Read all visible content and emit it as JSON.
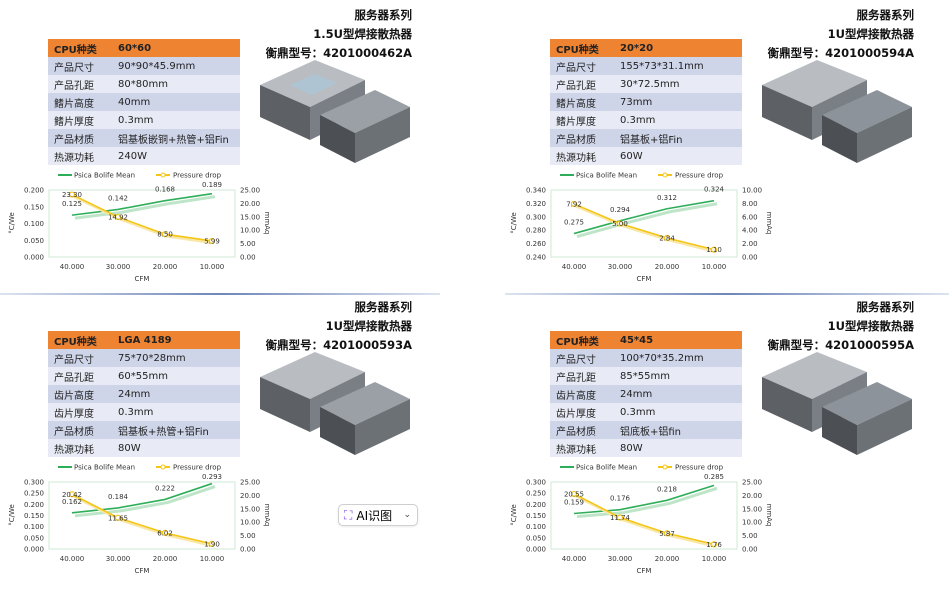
{
  "quadrants": [
    {
      "header": [
        "服务器系列",
        "1.5U型焊接散热器",
        "衡鼎型号：4201000462A"
      ],
      "rows": [
        [
          "CPU种类",
          "60*60"
        ],
        [
          "产品尺寸",
          "90*90*45.9mm"
        ],
        [
          "产品孔距",
          "80*80mm"
        ],
        [
          "鳍片高度",
          "40mm"
        ],
        [
          "鳍片厚度",
          "0.3mm"
        ],
        [
          "产品材质",
          "铝基板嵌铜+热管+铝Fin"
        ],
        [
          "热源功耗",
          "240W"
        ]
      ]
    },
    {
      "header": [
        "服务器系列",
        "1U型焊接散热器",
        "衡鼎型号：4201000594A"
      ],
      "rows": [
        [
          "CPU种类",
          "20*20"
        ],
        [
          "产品尺寸",
          "155*73*31.1mm"
        ],
        [
          "产品孔距",
          "30*72.5mm"
        ],
        [
          "鳍片高度",
          "73mm"
        ],
        [
          "鳍片厚度",
          "0.3mm"
        ],
        [
          "产品材质",
          "铝基板+铝Fin"
        ],
        [
          "热源功耗",
          "60W"
        ]
      ]
    },
    {
      "header": [
        "服务器系列",
        "1U型焊接散热器",
        "衡鼎型号：4201000593A"
      ],
      "rows": [
        [
          "CPU种类",
          "LGA 4189"
        ],
        [
          "产品尺寸",
          "75*70*28mm"
        ],
        [
          "产品孔距",
          "60*55mm"
        ],
        [
          "齿片高度",
          "24mm"
        ],
        [
          "齿片厚度",
          "0.3mm"
        ],
        [
          "产品材质",
          "铝基板+热管+铝Fin"
        ],
        [
          "热源功耗",
          "80W"
        ]
      ]
    },
    {
      "header": [
        "服务器系列",
        "1U型焊接散热器",
        "衡鼎型号：4201000595A"
      ],
      "rows": [
        [
          "CPU种类",
          "45*45"
        ],
        [
          "产品尺寸",
          "100*70*35.2mm"
        ],
        [
          "产品孔距",
          "85*55mm"
        ],
        [
          "齿片高度",
          "24mm"
        ],
        [
          "齿片厚度",
          "0.3mm"
        ],
        [
          "产品材质",
          "铝底板+铝fin"
        ],
        [
          "热源功耗",
          "80W"
        ]
      ]
    }
  ],
  "ai_button": {
    "label": "AI识图",
    "icon": "sparkle-scan-icon"
  },
  "colors": {
    "header_row": "#ee8332",
    "row_dark": "#cfd5e9",
    "row_light": "#e8ebf5",
    "thermal_line": "#2fae5a",
    "pressure_line": "#f5c518"
  },
  "chart_data": [
    {
      "type": "line",
      "categories": [
        "40.000",
        "30.000",
        "20.000",
        "10.000"
      ],
      "xlabel": "CFM",
      "ylabel": "°C/We",
      "y2label": "mmAq",
      "yticks": [
        "0.000",
        "0.050",
        "0.100",
        "0.150",
        "0.200"
      ],
      "ylim": [
        0,
        0.2
      ],
      "y2ticks": [
        "0.00",
        "5.00",
        "10.00",
        "15.00",
        "20.00",
        "25.00"
      ],
      "y2lim": [
        0,
        25
      ],
      "series": [
        {
          "name": "Psica Bolife Mean",
          "values": [
            0.125,
            0.142,
            0.168,
            0.189
          ],
          "labels": [
            "0.125",
            "0.142",
            "0.168",
            "0.189"
          ],
          "axis": "left"
        },
        {
          "name": "Pressure drop",
          "values": [
            23.3,
            14.92,
            8.5,
            5.99
          ],
          "labels": [
            "23.30",
            "14.92",
            "8.50",
            "5.99"
          ],
          "axis": "right"
        }
      ]
    },
    {
      "type": "line",
      "categories": [
        "40.000",
        "30.000",
        "20.000",
        "10.000"
      ],
      "xlabel": "CFM",
      "ylabel": "°C/We",
      "y2label": "mmAq",
      "yticks": [
        "0.240",
        "0.260",
        "0.280",
        "0.300",
        "0.320",
        "0.340"
      ],
      "ylim": [
        0.24,
        0.34
      ],
      "y2ticks": [
        "0.00",
        "2.00",
        "4.00",
        "6.00",
        "8.00",
        "10.00"
      ],
      "y2lim": [
        0,
        10
      ],
      "series": [
        {
          "name": "Psica Bolife Mean",
          "values": [
            0.275,
            0.294,
            0.312,
            0.324
          ],
          "labels": [
            "0.275",
            "0.294",
            "0.312",
            "0.324"
          ],
          "axis": "left"
        },
        {
          "name": "Pressure drop",
          "values": [
            7.92,
            5.0,
            2.84,
            1.1
          ],
          "labels": [
            "7.92",
            "5.00",
            "2.84",
            "1.10"
          ],
          "axis": "right"
        }
      ]
    },
    {
      "type": "line",
      "categories": [
        "40.000",
        "30.000",
        "20.000",
        "10.000"
      ],
      "xlabel": "CFM",
      "ylabel": "°C/We",
      "y2label": "mmAq",
      "yticks": [
        "0.000",
        "0.050",
        "0.100",
        "0.150",
        "0.200",
        "0.250",
        "0.300"
      ],
      "ylim": [
        0,
        0.3
      ],
      "y2ticks": [
        "0.00",
        "5.00",
        "10.00",
        "15.00",
        "20.00",
        "25.00"
      ],
      "y2lim": [
        0,
        25
      ],
      "series": [
        {
          "name": "Psica Bolife Mean",
          "values": [
            0.162,
            0.184,
            0.222,
            0.293
          ],
          "labels": [
            "0.162",
            "0.184",
            "0.222",
            "0.293"
          ],
          "axis": "left"
        },
        {
          "name": "Pressure drop",
          "values": [
            20.42,
            11.65,
            6.02,
            1.9
          ],
          "labels": [
            "20.42",
            "11.65",
            "6.02",
            "1.90"
          ],
          "axis": "right"
        }
      ]
    },
    {
      "type": "line",
      "categories": [
        "40.000",
        "30.000",
        "20.000",
        "10.000"
      ],
      "xlabel": "CFM",
      "ylabel": "°C/We",
      "y2label": "mmAq",
      "yticks": [
        "0.000",
        "0.050",
        "0.100",
        "0.150",
        "0.200",
        "0.250",
        "0.300"
      ],
      "ylim": [
        0,
        0.3
      ],
      "y2ticks": [
        "0.00",
        "5.00",
        "10.00",
        "15.00",
        "20.00",
        "25.00"
      ],
      "y2lim": [
        0,
        25
      ],
      "series": [
        {
          "name": "Psica Bolife Mean",
          "values": [
            0.159,
            0.176,
            0.218,
            0.285
          ],
          "labels": [
            "0.159",
            "0.176",
            "0.218",
            "0.285"
          ],
          "axis": "left"
        },
        {
          "name": "Pressure drop",
          "values": [
            20.55,
            11.74,
            5.87,
            1.76
          ],
          "labels": [
            "20.55",
            "11.74",
            "5.87",
            "1.76"
          ],
          "axis": "right"
        }
      ]
    }
  ]
}
